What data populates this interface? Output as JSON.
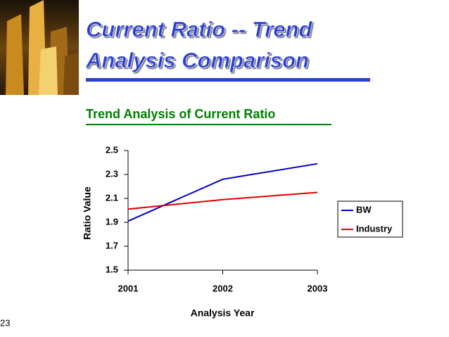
{
  "slide": {
    "title_lines": [
      "Current Ratio -- Trend",
      "Analysis Comparison"
    ],
    "page_number": "23"
  },
  "chart_data": {
    "type": "line",
    "title": "Trend Analysis of Current Ratio",
    "x_label": "Analysis Year",
    "y_label": "Ratio Value",
    "categories": [
      "2001",
      "2002",
      "2003"
    ],
    "series": [
      {
        "name": "BW",
        "color": "#0000cc",
        "values": [
          1.91,
          2.26,
          2.39
        ]
      },
      {
        "name": "Industry",
        "color": "#e00000",
        "values": [
          2.01,
          2.09,
          2.15
        ]
      }
    ],
    "ylim": [
      1.5,
      2.5
    ],
    "yticks": [
      1.5,
      1.7,
      1.9,
      2.1,
      2.3,
      2.5
    ],
    "legend": "right",
    "grid": false
  }
}
